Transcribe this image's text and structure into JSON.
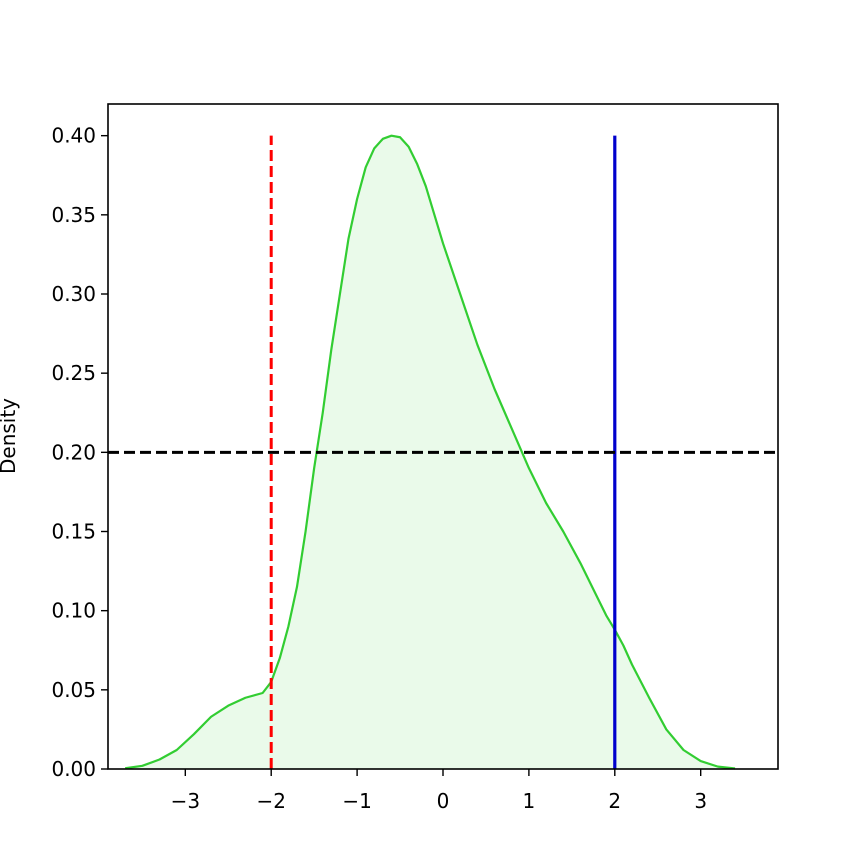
{
  "chart_data": {
    "type": "area",
    "title": "",
    "xlabel": "",
    "ylabel": "Density",
    "xlim": [
      -3.9,
      3.9
    ],
    "ylim": [
      0.0,
      0.42
    ],
    "grid": false,
    "x_ticks": [
      -3,
      -2,
      -1,
      0,
      1,
      2,
      3
    ],
    "x_tick_labels": [
      "−3",
      "−2",
      "−1",
      "0",
      "1",
      "2",
      "3"
    ],
    "y_ticks": [
      0.0,
      0.05,
      0.1,
      0.15,
      0.2,
      0.25,
      0.3,
      0.35,
      0.4
    ],
    "y_tick_labels": [
      "0.00",
      "0.05",
      "0.10",
      "0.15",
      "0.20",
      "0.25",
      "0.30",
      "0.35",
      "0.40"
    ],
    "series": [
      {
        "kind": "kde",
        "color": "#32cd32",
        "fill_color": "#32cd32",
        "fill_opacity": 0.1,
        "x": [
          -3.7,
          -3.5,
          -3.3,
          -3.1,
          -2.9,
          -2.7,
          -2.5,
          -2.3,
          -2.1,
          -2.0,
          -1.9,
          -1.8,
          -1.7,
          -1.6,
          -1.5,
          -1.4,
          -1.3,
          -1.2,
          -1.1,
          -1.0,
          -0.9,
          -0.8,
          -0.7,
          -0.6,
          -0.5,
          -0.4,
          -0.3,
          -0.2,
          -0.1,
          0.0,
          0.2,
          0.4,
          0.6,
          0.8,
          1.0,
          1.2,
          1.4,
          1.6,
          1.8,
          1.9,
          2.0,
          2.1,
          2.2,
          2.4,
          2.6,
          2.8,
          3.0,
          3.2,
          3.4
        ],
        "y": [
          0.0005,
          0.002,
          0.006,
          0.012,
          0.022,
          0.033,
          0.04,
          0.045,
          0.048,
          0.055,
          0.07,
          0.09,
          0.115,
          0.15,
          0.19,
          0.225,
          0.265,
          0.3,
          0.335,
          0.36,
          0.38,
          0.392,
          0.398,
          0.4,
          0.399,
          0.393,
          0.382,
          0.368,
          0.35,
          0.332,
          0.3,
          0.268,
          0.24,
          0.215,
          0.19,
          0.168,
          0.15,
          0.13,
          0.108,
          0.097,
          0.088,
          0.078,
          0.066,
          0.045,
          0.025,
          0.012,
          0.005,
          0.0015,
          0.0003
        ]
      }
    ],
    "reference_lines": [
      {
        "orientation": "vertical",
        "x": -2,
        "ymin": 0.0,
        "ymax": 0.4,
        "color": "#ff0000",
        "style": "dashed"
      },
      {
        "orientation": "vertical",
        "x": 2,
        "ymin": 0.0,
        "ymax": 0.4,
        "color": "#0000cd",
        "style": "solid"
      },
      {
        "orientation": "horizontal",
        "y": 0.2,
        "color": "#000000",
        "style": "dashed"
      }
    ]
  }
}
